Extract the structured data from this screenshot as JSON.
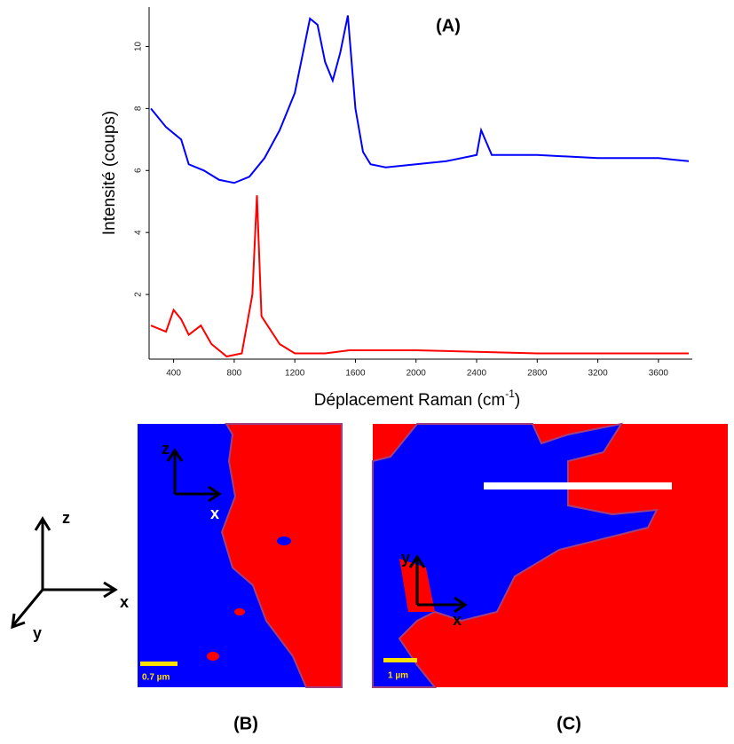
{
  "chart_data": {
    "type": "line",
    "title": "(A)",
    "x_label": "Déplacement Raman (cm",
    "x_label_sup": "-1",
    "x_label_end": ")",
    "y_label": "Intensité (coups)",
    "xlim": [
      250,
      3800
    ],
    "ylim": [
      0,
      11.3
    ],
    "xticks": [
      400,
      800,
      1200,
      1600,
      2000,
      2400,
      2800,
      3200,
      3600
    ],
    "yticks": [
      2,
      4,
      6,
      8,
      10
    ],
    "series": [
      {
        "color": "#0000ff",
        "x": [
          250,
          350,
          450,
          500,
          600,
          700,
          800,
          900,
          1000,
          1100,
          1200,
          1300,
          1350,
          1400,
          1450,
          1500,
          1550,
          1600,
          1650,
          1700,
          1800,
          2000,
          2200,
          2400,
          2430,
          2500,
          2800,
          3200,
          3600,
          3800
        ],
        "values": [
          8.0,
          7.4,
          7.0,
          6.2,
          6.0,
          5.7,
          5.6,
          5.8,
          6.4,
          7.3,
          8.5,
          10.9,
          10.7,
          9.5,
          8.9,
          9.8,
          11.0,
          8.0,
          6.6,
          6.2,
          6.1,
          6.2,
          6.3,
          6.5,
          7.3,
          6.5,
          6.5,
          6.4,
          6.4,
          6.3
        ]
      },
      {
        "color": "#ff0000",
        "x": [
          250,
          350,
          400,
          450,
          500,
          580,
          650,
          750,
          850,
          920,
          950,
          980,
          1020,
          1100,
          1200,
          1300,
          1400,
          1560,
          1600,
          2000,
          2800,
          3800
        ],
        "values": [
          1.0,
          0.8,
          1.5,
          1.2,
          0.7,
          1.0,
          0.4,
          0.0,
          0.1,
          2.0,
          5.2,
          1.3,
          1.0,
          0.4,
          0.1,
          0.1,
          0.1,
          0.2,
          0.2,
          0.2,
          0.1,
          0.1
        ]
      }
    ]
  },
  "panels": {
    "b": {
      "label": "(B)",
      "axis_z": "z",
      "axis_x": "x",
      "scale_bar": "0.7 µm"
    },
    "c": {
      "label": "(C)",
      "axis_y": "y",
      "axis_x": "x",
      "scale_bar": "1 µm"
    },
    "frame": {
      "axis_z": "z",
      "axis_x": "x",
      "axis_y": "y"
    }
  }
}
